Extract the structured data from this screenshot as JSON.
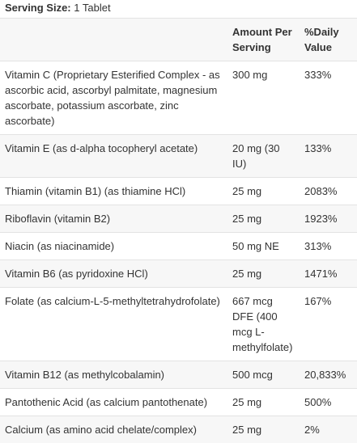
{
  "serving_size": {
    "label": "Serving Size:",
    "value": "1 Tablet"
  },
  "table": {
    "header": [
      "Amount Per Serving",
      "%Daily Value"
    ],
    "rows": [
      [
        "Vitamin C (Proprietary Esterified Complex - as ascorbic acid, ascorbyl palmitate, magnesium ascorbate, potassium ascorbate, zinc ascorbate)",
        "300 mg",
        "333%"
      ],
      [
        "Vitamin E (as d-alpha tocopheryl acetate)",
        "20 mg (30 IU)",
        "133%"
      ],
      [
        "Thiamin (vitamin B1) (as thiamine HCl)",
        "25 mg",
        "2083%"
      ],
      [
        "Riboflavin (vitamin B2)",
        "25 mg",
        "1923%"
      ],
      [
        "Niacin (as niacinamide)",
        "50 mg NE",
        "313%"
      ],
      [
        "Vitamin B6 (as pyridoxine HCl)",
        "25 mg",
        "1471%"
      ],
      [
        "Folate (as calcium-L-5-methyltetrahydrofolate)",
        "667 mcg DFE (400 mcg L-methylfolate)",
        "167%"
      ],
      [
        "Vitamin B12 (as methylcobalamin)",
        "500 mcg",
        "20,833%"
      ],
      [
        "Pantothenic Acid (as calcium pantothenate)",
        "25 mg",
        "500%"
      ],
      [
        "Calcium (as amino acid chelate/complex)",
        "25 mg",
        "2%"
      ]
    ]
  }
}
